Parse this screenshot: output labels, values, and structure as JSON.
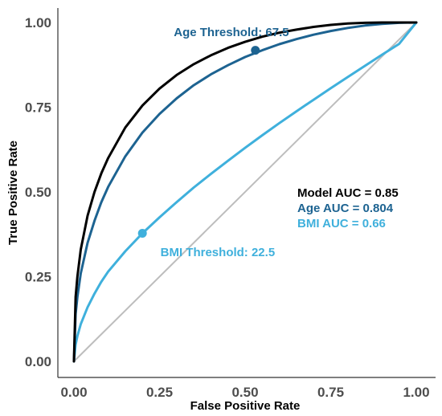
{
  "chart_data": {
    "type": "line",
    "xlabel": "False Positive Rate",
    "ylabel": "True Positive Rate",
    "xlim": [
      0,
      1
    ],
    "ylim": [
      0,
      1
    ],
    "x_ticks": [
      "0.00",
      "0.25",
      "0.50",
      "0.75",
      "1.00"
    ],
    "y_ticks": [
      "0.00",
      "0.25",
      "0.50",
      "0.75",
      "1.00"
    ],
    "grid": false,
    "series": [
      {
        "name": "Model AUC = 0.85",
        "color": "#000000",
        "x": [
          0,
          0.005,
          0.01,
          0.02,
          0.04,
          0.06,
          0.08,
          0.1,
          0.15,
          0.2,
          0.25,
          0.3,
          0.35,
          0.4,
          0.45,
          0.5,
          0.55,
          0.6,
          0.65,
          0.7,
          0.75,
          0.8,
          0.85,
          0.9,
          0.95,
          1.0
        ],
        "y": [
          0,
          0.19,
          0.25,
          0.33,
          0.43,
          0.5,
          0.555,
          0.6,
          0.69,
          0.755,
          0.805,
          0.845,
          0.877,
          0.903,
          0.925,
          0.943,
          0.958,
          0.97,
          0.979,
          0.987,
          0.993,
          0.997,
          0.999,
          1.0,
          1.0,
          1.0
        ]
      },
      {
        "name": "Age AUC = 0.804",
        "color": "#1d6391",
        "x": [
          0,
          0.005,
          0.01,
          0.02,
          0.04,
          0.06,
          0.08,
          0.1,
          0.15,
          0.2,
          0.25,
          0.3,
          0.35,
          0.4,
          0.45,
          0.5,
          0.55,
          0.6,
          0.65,
          0.7,
          0.75,
          0.8,
          0.85,
          0.9,
          0.95,
          1.0
        ],
        "y": [
          0,
          0.14,
          0.19,
          0.26,
          0.35,
          0.415,
          0.47,
          0.515,
          0.605,
          0.675,
          0.73,
          0.776,
          0.815,
          0.847,
          0.874,
          0.898,
          0.918,
          0.936,
          0.951,
          0.964,
          0.975,
          0.984,
          0.991,
          0.996,
          0.999,
          1.0
        ]
      },
      {
        "name": "BMI AUC = 0.66",
        "color": "#3fb0dc",
        "x": [
          0,
          0.005,
          0.01,
          0.02,
          0.04,
          0.06,
          0.08,
          0.1,
          0.15,
          0.2,
          0.25,
          0.3,
          0.35,
          0.4,
          0.45,
          0.5,
          0.55,
          0.6,
          0.65,
          0.7,
          0.75,
          0.8,
          0.85,
          0.9,
          0.95,
          1.0
        ],
        "y": [
          0,
          0.05,
          0.075,
          0.11,
          0.16,
          0.2,
          0.235,
          0.265,
          0.325,
          0.378,
          0.425,
          0.47,
          0.513,
          0.553,
          0.592,
          0.63,
          0.667,
          0.703,
          0.738,
          0.772,
          0.806,
          0.839,
          0.872,
          0.905,
          0.937,
          1.0
        ]
      }
    ],
    "diagonal": {
      "color": "#bdbdbd",
      "x": [
        0,
        1
      ],
      "y": [
        0,
        1
      ]
    },
    "points": [
      {
        "series": "Age AUC = 0.804",
        "x": 0.53,
        "y": 0.918,
        "color": "#1d6391"
      },
      {
        "series": "BMI AUC = 0.66",
        "x": 0.2,
        "y": 0.378,
        "color": "#3fb0dc"
      }
    ],
    "annotations": [
      {
        "text": "Age Threshold: 67.5",
        "x": 0.46,
        "y": 0.96,
        "color": "#1d6391"
      },
      {
        "text": "BMI Threshold: 22.5",
        "x": 0.42,
        "y": 0.31,
        "color": "#3fb0dc"
      }
    ],
    "legend": {
      "placement": "right",
      "entries": [
        {
          "text": "Model AUC = 0.85",
          "color": "#000000"
        },
        {
          "text": "Age AUC = 0.804",
          "color": "#1d6391"
        },
        {
          "text": "BMI AUC = 0.66",
          "color": "#3fb0dc"
        }
      ]
    }
  }
}
